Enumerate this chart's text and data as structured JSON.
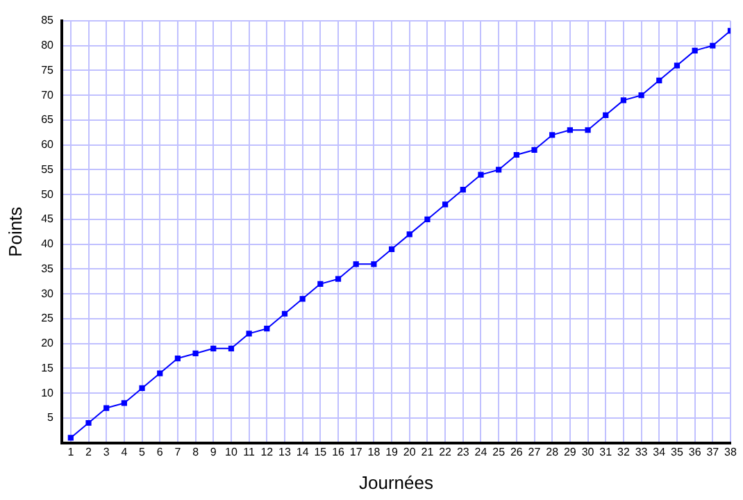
{
  "chart_data": {
    "type": "line",
    "xlabel": "Journées",
    "ylabel": "Points",
    "x": [
      1,
      2,
      3,
      4,
      5,
      6,
      7,
      8,
      9,
      10,
      11,
      12,
      13,
      14,
      15,
      16,
      17,
      18,
      19,
      20,
      21,
      22,
      23,
      24,
      25,
      26,
      27,
      28,
      29,
      30,
      31,
      32,
      33,
      34,
      35,
      36,
      37,
      38
    ],
    "series": [
      {
        "color": "#0000ff",
        "values": [
          1,
          4,
          7,
          8,
          11,
          14,
          17,
          18,
          19,
          19,
          22,
          23,
          26,
          29,
          32,
          33,
          36,
          36,
          39,
          42,
          45,
          48,
          51,
          54,
          55,
          58,
          59,
          62,
          63,
          63,
          66,
          69,
          70,
          73,
          76,
          79,
          80,
          83
        ]
      }
    ],
    "xlim": [
      0.5,
      38
    ],
    "xticks": [
      1,
      2,
      3,
      4,
      5,
      6,
      7,
      8,
      9,
      10,
      11,
      12,
      13,
      14,
      15,
      16,
      17,
      18,
      19,
      20,
      21,
      22,
      23,
      24,
      25,
      26,
      27,
      28,
      29,
      30,
      31,
      32,
      33,
      34,
      35,
      36,
      37,
      38
    ],
    "ylim": [
      0,
      85
    ],
    "yticks": [
      5,
      10,
      15,
      20,
      25,
      30,
      35,
      40,
      45,
      50,
      55,
      60,
      65,
      70,
      75,
      80,
      85
    ],
    "grid": true,
    "legend": false,
    "marker": "square",
    "line_style": "solid"
  }
}
